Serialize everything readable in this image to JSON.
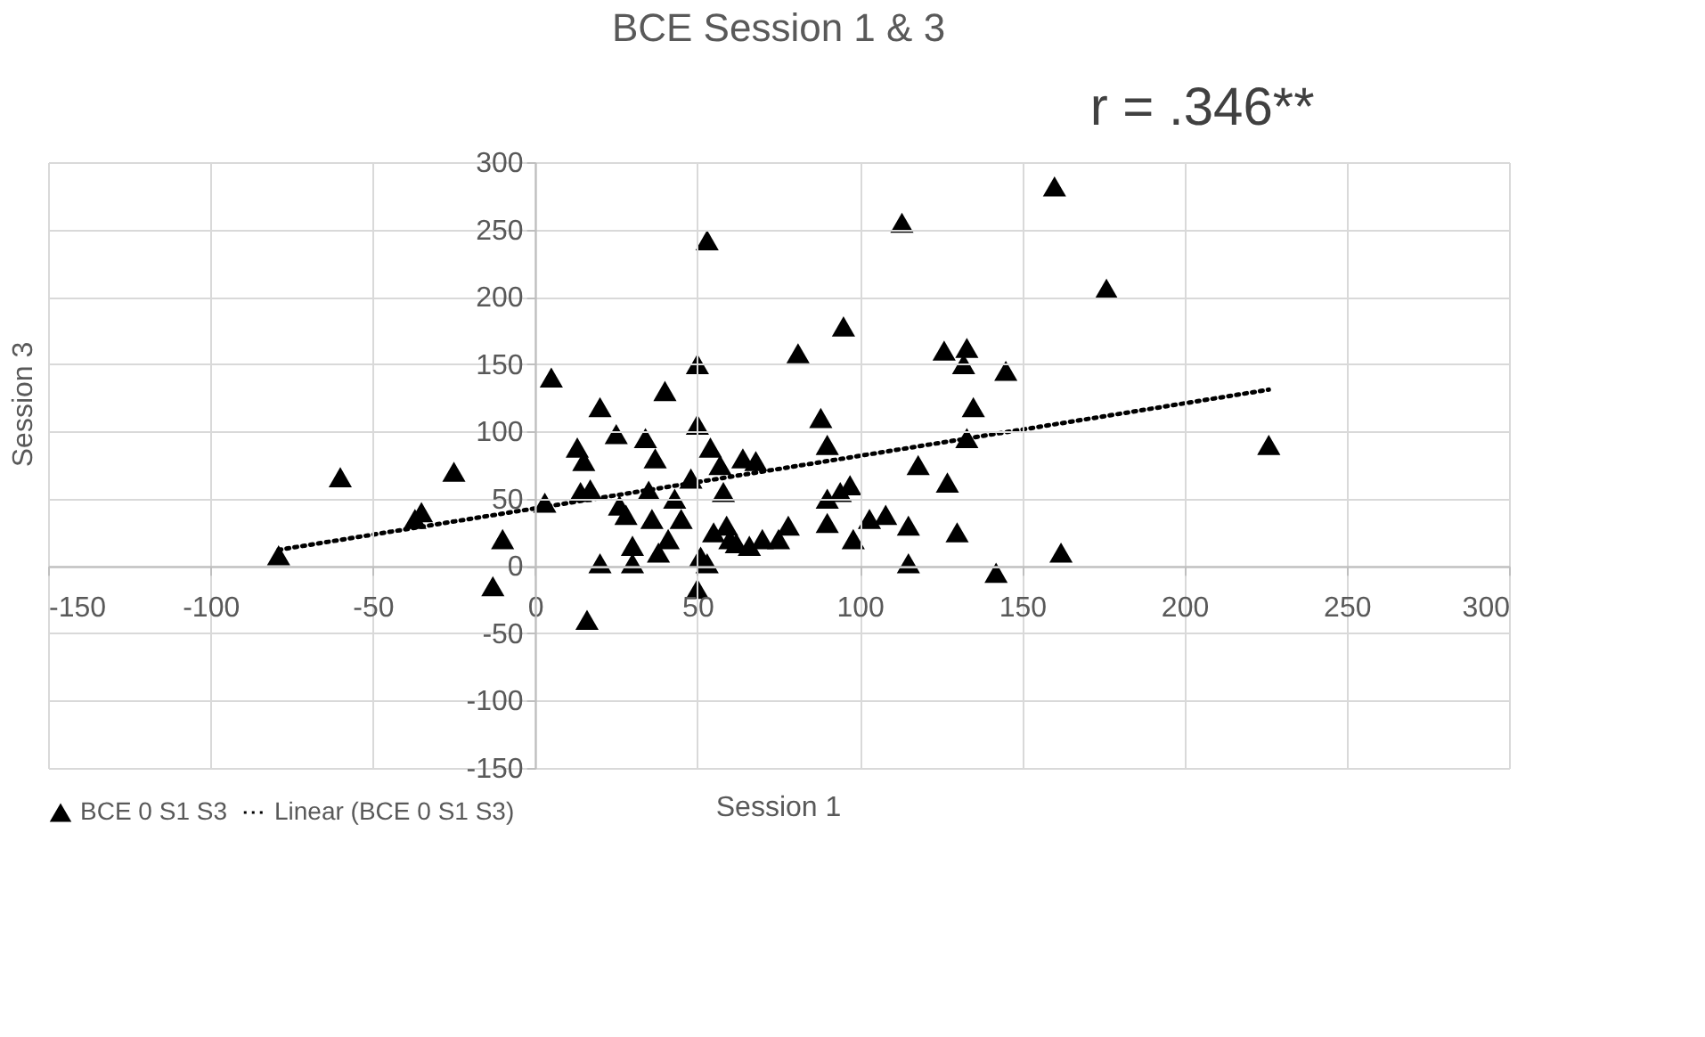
{
  "chart_data": {
    "type": "scatter",
    "title": "BCE Session 1 & 3",
    "xlabel": "Session 1",
    "ylabel": "Session 3",
    "annotations": [
      "r = .346**"
    ],
    "xlim": [
      -150,
      300
    ],
    "xticks": [
      -150,
      -100,
      -50,
      0,
      50,
      100,
      150,
      200,
      250,
      300
    ],
    "ylim": [
      -150,
      300
    ],
    "yticks": [
      -150,
      -100,
      -50,
      0,
      50,
      100,
      150,
      200,
      250,
      300
    ],
    "grid": true,
    "legend": "bottom",
    "series": [
      {
        "name": "BCE 0 S1 S3",
        "type": "scatter",
        "color": "#000000",
        "marker": "triangle",
        "x": [
          -79,
          -60,
          -37,
          -35,
          -25,
          -13,
          -10,
          5,
          3,
          13,
          14,
          15,
          17,
          16,
          20,
          20,
          25,
          26,
          28,
          30,
          30,
          34,
          35,
          36,
          37,
          38,
          40,
          41,
          43,
          45,
          48,
          50,
          50,
          50,
          51,
          53,
          53,
          54,
          55,
          57,
          58,
          59,
          60,
          62,
          64,
          66,
          68,
          70,
          75,
          78,
          81,
          88,
          90,
          90,
          90,
          94,
          95,
          97,
          98,
          103,
          108,
          113,
          115,
          115,
          118,
          126,
          127,
          130,
          132,
          133,
          133,
          135,
          142,
          145,
          160,
          162,
          176,
          226
        ],
        "values": [
          8,
          66,
          35,
          40,
          70,
          -15,
          20,
          140,
          47,
          88,
          55,
          78,
          57,
          -40,
          118,
          2,
          98,
          45,
          38,
          15,
          2,
          95,
          56,
          35,
          80,
          10,
          130,
          20,
          50,
          35,
          65,
          150,
          105,
          -17,
          7,
          242,
          2,
          88,
          25,
          75,
          55,
          30,
          20,
          17,
          80,
          15,
          78,
          20,
          20,
          30,
          158,
          110,
          90,
          50,
          32,
          55,
          178,
          60,
          20,
          35,
          38,
          255,
          30,
          2,
          75,
          160,
          62,
          25,
          150,
          162,
          95,
          118,
          -5,
          145,
          282,
          10,
          206,
          90
        ]
      },
      {
        "name": "Linear (BCE 0 S1 S3)",
        "type": "line",
        "color": "#000000",
        "line_style": "dotted",
        "x": [
          -79,
          226
        ],
        "values": [
          12,
          131
        ]
      }
    ]
  }
}
